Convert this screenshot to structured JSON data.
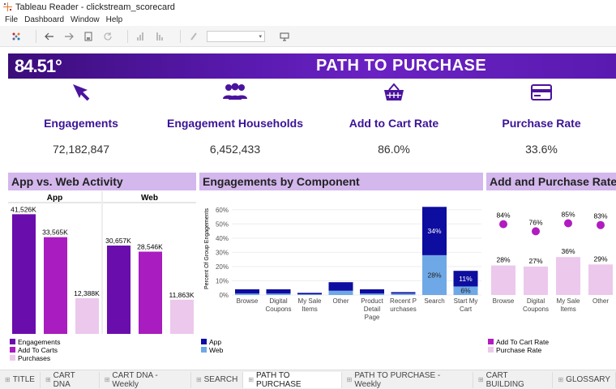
{
  "window": {
    "title": "Tableau Reader - clickstream_scorecard"
  },
  "menu": [
    "File",
    "Dashboard",
    "Window",
    "Help"
  ],
  "banner": {
    "logo": "84.51°",
    "title": "PATH TO PURCHASE"
  },
  "kpis": [
    {
      "label": "Engagements",
      "value": "72,182,847",
      "icon": "cursor-icon"
    },
    {
      "label": "Engagement Households",
      "value": "6,452,433",
      "icon": "people-icon"
    },
    {
      "label": "Add to Cart Rate",
      "value": "86.0%",
      "icon": "basket-icon"
    },
    {
      "label": "Purchase Rate",
      "value": "33.6%",
      "icon": "credit-card-icon"
    }
  ],
  "colors": {
    "dark_purple": "#6a0dad",
    "mid_purple": "#a81cc0",
    "light_purple": "#ecc8ec",
    "dark_blue": "#0d0da0",
    "light_blue": "#6fa8e6",
    "banner": "#5a1ab0",
    "title_band": "#d3b7ed",
    "dot": "#b01cc0",
    "pale_bar": "#ecc8ec"
  },
  "chart_data": [
    {
      "type": "bar",
      "title": "App vs. Web Activity",
      "panels": [
        "App",
        "Web"
      ],
      "series": [
        {
          "name": "Engagements",
          "values": [
            41526,
            30657
          ],
          "labels": [
            "41,526K",
            "30,657K"
          ]
        },
        {
          "name": "Add To Carts",
          "values": [
            33565,
            28546
          ],
          "labels": [
            "33,565K",
            "28,546K"
          ]
        },
        {
          "name": "Purchases",
          "values": [
            12388,
            11863
          ],
          "labels": [
            "12,388K",
            "11,863K"
          ]
        }
      ],
      "ylim": [
        0,
        45000
      ]
    },
    {
      "type": "bar",
      "stacked": true,
      "title": "Engagements by Component",
      "ylabel": "Percent Of Group Engagements",
      "ylim": [
        0,
        0.65
      ],
      "ticks": [
        "60%",
        "50%",
        "40%",
        "30%",
        "20%",
        "10%",
        "0%"
      ],
      "categories": [
        "Browse",
        "Digital Coupons",
        "My Sale Items",
        "Other",
        "Product Detail Page",
        "Recent Purchases",
        "Search",
        "Start My Cart"
      ],
      "category_labels": [
        [
          "Browse"
        ],
        [
          "Digital",
          "Coupons"
        ],
        [
          "My Sale",
          "Items"
        ],
        [
          "Other"
        ],
        [
          "Product",
          "Detail",
          "Page"
        ],
        [
          "Recent P",
          "urchases"
        ],
        [
          "Search"
        ],
        [
          "Start My",
          "Cart"
        ]
      ],
      "series": [
        {
          "name": "App",
          "values": [
            0.03,
            0.03,
            0.01,
            0.06,
            0.03,
            0.01,
            0.34,
            0.11
          ]
        },
        {
          "name": "Web",
          "values": [
            0.01,
            0.01,
            0.005,
            0.03,
            0.01,
            0.01,
            0.28,
            0.06
          ]
        }
      ],
      "data_labels": {
        "search_app": "34%",
        "search_web": "28%",
        "start_app": "11%",
        "start_web": "6%"
      }
    },
    {
      "type": "bar+dot",
      "title": "Add and Purchase Rate",
      "categories": [
        "Browse",
        "Digital Coupons",
        "My Sale Items",
        "Other"
      ],
      "category_labels": [
        [
          "Browse"
        ],
        [
          "Digital",
          "Coupons"
        ],
        [
          "My Sale",
          "Items"
        ],
        [
          "Other"
        ]
      ],
      "series": [
        {
          "name": "Add To Cart Rate",
          "values": [
            84,
            76,
            85,
            83
          ],
          "labels": [
            "84%",
            "76%",
            "85%",
            "83%"
          ]
        },
        {
          "name": "Purchase Rate",
          "values": [
            28,
            27,
            36,
            29
          ],
          "labels": [
            "28%",
            "27%",
            "36%",
            "29%"
          ]
        }
      ]
    }
  ],
  "tabs": [
    "TITLE",
    "CART DNA",
    "CART DNA - Weekly",
    "SEARCH",
    "PATH TO PURCHASE",
    "PATH TO PURCHASE - Weekly",
    "CART BUILDING",
    "GLOSSARY"
  ],
  "active_tab": "PATH TO PURCHASE"
}
